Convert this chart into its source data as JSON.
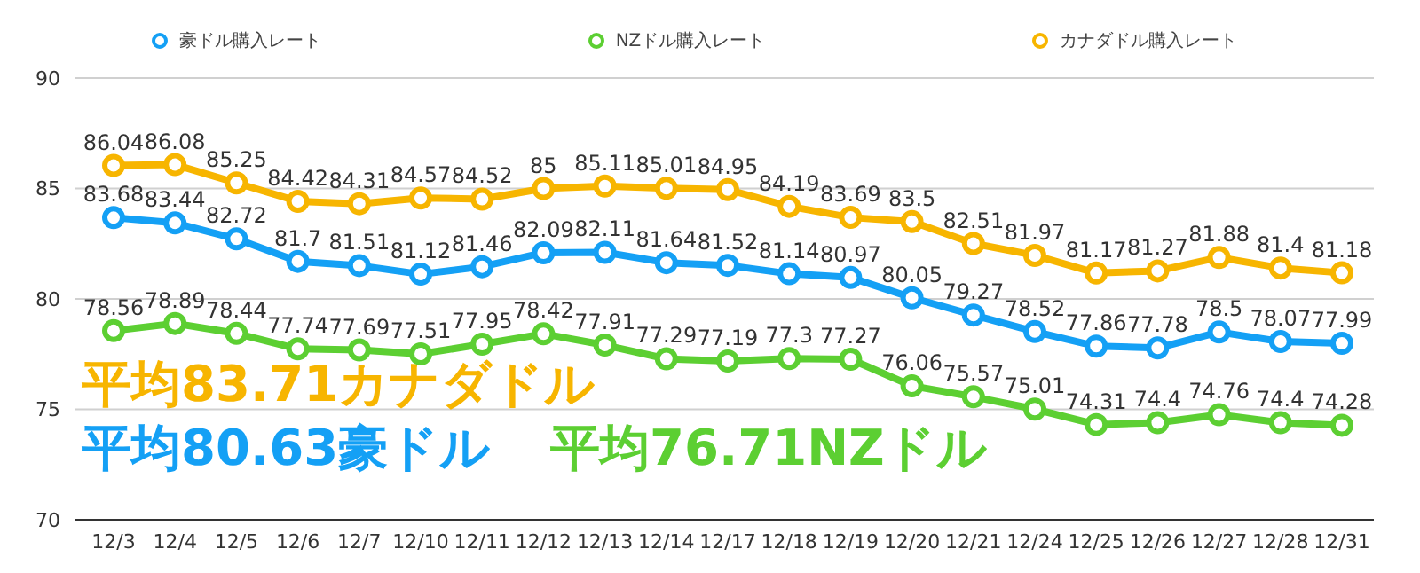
{
  "chart_data": {
    "type": "line",
    "categories": [
      "12/3",
      "12/4",
      "12/5",
      "12/6",
      "12/7",
      "12/10",
      "12/11",
      "12/12",
      "12/13",
      "12/14",
      "12/17",
      "12/18",
      "12/19",
      "12/20",
      "12/21",
      "12/24",
      "12/25",
      "12/26",
      "12/27",
      "12/28",
      "12/31"
    ],
    "series": [
      {
        "name": "豪ドル購入レート",
        "color": "#14a0f5",
        "values": [
          83.68,
          83.44,
          82.72,
          81.7,
          81.51,
          81.12,
          81.46,
          82.09,
          82.11,
          81.64,
          81.52,
          81.14,
          80.97,
          80.05,
          79.27,
          78.52,
          77.86,
          77.78,
          78.5,
          78.07,
          77.99
        ]
      },
      {
        "name": "NZドル購入レート",
        "color": "#5ccf32",
        "values": [
          78.56,
          78.89,
          78.44,
          77.74,
          77.69,
          77.51,
          77.95,
          78.42,
          77.91,
          77.29,
          77.19,
          77.3,
          77.27,
          76.06,
          75.57,
          75.01,
          74.31,
          74.4,
          74.76,
          74.4,
          74.28
        ]
      },
      {
        "name": "カナダドル購入レート",
        "color": "#f7b500",
        "values": [
          86.04,
          86.08,
          85.25,
          84.42,
          84.31,
          84.57,
          84.52,
          85,
          85.11,
          85.01,
          84.95,
          84.19,
          83.69,
          83.5,
          82.51,
          81.97,
          81.17,
          81.27,
          81.88,
          81.4,
          81.18
        ]
      }
    ],
    "ylim": [
      70,
      90
    ],
    "yticks": [
      70,
      75,
      80,
      85,
      90
    ],
    "grid": "y",
    "legend": "top",
    "marker": "circle",
    "line_style": "solid",
    "data_labels": true,
    "annotations": [
      "平均83.71カナダドル",
      "平均80.63豪ドル",
      "平均76.71NZドル"
    ]
  }
}
